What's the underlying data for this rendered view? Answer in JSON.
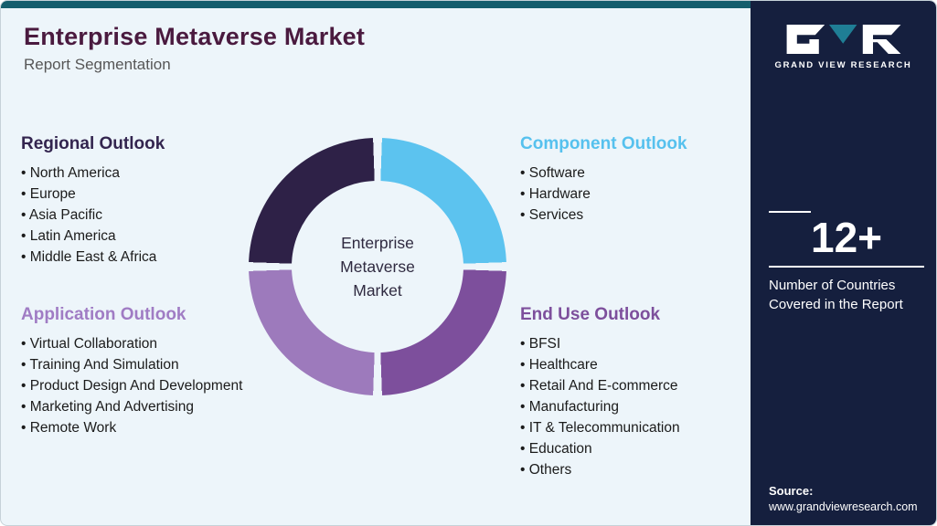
{
  "theme": {
    "background": "#edf5fa",
    "topbar_color": "#155e6d",
    "sidebar_color": "#151f3e",
    "title_color": "#4a1a3f",
    "logo_teal": "#1f7e95"
  },
  "header": {
    "title": "Enterprise Metaverse Market",
    "subtitle": "Report Segmentation"
  },
  "donut": {
    "center_label": "Enterprise\nMetaverse\nMarket",
    "gap_color": "#edf5fa",
    "segments": [
      {
        "label": "Component Outlook",
        "color": "#5cc3ef",
        "start": 2,
        "end": 88
      },
      {
        "label": "End Use Outlook",
        "color": "#7d4f9c",
        "start": 92,
        "end": 178
      },
      {
        "label": "Application Outlook",
        "color": "#9d7abc",
        "start": 182,
        "end": 268
      },
      {
        "label": "Regional Outlook",
        "color": "#2e2147",
        "start": 272,
        "end": 358
      }
    ]
  },
  "sections": [
    {
      "title": "Regional Outlook",
      "color": "#33254f",
      "items": [
        "North America",
        "Europe",
        "Asia Pacific",
        "Latin America",
        "Middle East & Africa"
      ]
    },
    {
      "title": "Component Outlook",
      "color": "#56c1ee",
      "items": [
        "Software",
        "Hardware",
        "Services"
      ]
    },
    {
      "title": "Application Outlook",
      "color": "#a07cc4",
      "items": [
        "Virtual Collaboration",
        "Training And Simulation",
        "Product Design And Development",
        "Marketing And Advertising",
        "Remote Work"
      ]
    },
    {
      "title": "End Use Outlook",
      "color": "#7d4f9c",
      "items": [
        "BFSI",
        "Healthcare",
        "Retail And E-commerce",
        "Manufacturing",
        "IT & Telecommunication",
        "Education",
        "Others"
      ]
    }
  ],
  "sidebar": {
    "brand": "GRAND VIEW RESEARCH",
    "stat_value": "12+",
    "stat_caption": "Number of Countries Covered in the Report",
    "source_label": "Source:",
    "source_url": "www.grandviewresearch.com"
  }
}
